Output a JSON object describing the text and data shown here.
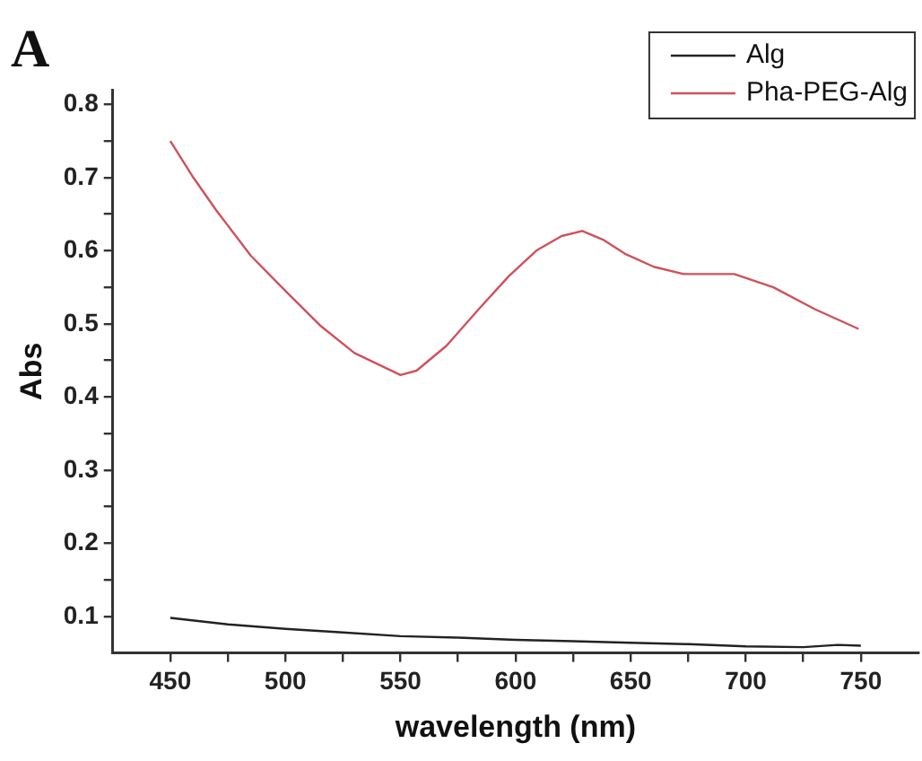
{
  "chart_data": {
    "type": "line",
    "title": "A",
    "xlabel": "wavelength (nm)",
    "ylabel": "Abs",
    "xlim": [
      425,
      775
    ],
    "ylim": [
      0.05,
      0.82
    ],
    "xticks": [
      450,
      {
        "value": 475,
        "label": null
      },
      500,
      {
        "value": 525,
        "label": null
      },
      550,
      {
        "value": 575,
        "label": null
      },
      600,
      {
        "value": 625,
        "label": null
      },
      650,
      {
        "value": 675,
        "label": null
      },
      700,
      {
        "value": 725,
        "label": null
      },
      750
    ],
    "yticks": [
      0.1,
      {
        "value": 0.15,
        "label": null
      },
      0.2,
      {
        "value": 0.25,
        "label": null
      },
      0.3,
      {
        "value": 0.35,
        "label": null
      },
      0.4,
      {
        "value": 0.45,
        "label": null
      },
      0.5,
      {
        "value": 0.55,
        "label": null
      },
      0.6,
      {
        "value": 0.65,
        "label": null
      },
      0.7,
      {
        "value": 0.75,
        "label": null
      },
      0.8
    ],
    "grid": false,
    "legend": "top right",
    "marker": "none",
    "line_style": "solid",
    "series": [
      {
        "name": "Alg",
        "color": "#222222",
        "x": [
          450,
          475,
          500,
          525,
          550,
          575,
          600,
          625,
          650,
          675,
          700,
          725,
          740,
          750
        ],
        "values": [
          0.098,
          0.089,
          0.083,
          0.078,
          0.073,
          0.071,
          0.068,
          0.066,
          0.064,
          0.062,
          0.059,
          0.058,
          0.061,
          0.06
        ]
      },
      {
        "name": "Pha-PEG-Alg",
        "color": "#d0505a",
        "x": [
          450,
          460,
          470,
          485,
          500,
          515,
          530,
          550,
          557,
          570,
          584,
          597,
          609,
          620,
          629,
          638,
          648,
          660,
          673,
          685,
          695,
          712,
          730,
          749
        ],
        "values": [
          0.75,
          0.7,
          0.655,
          0.593,
          0.545,
          0.498,
          0.46,
          0.43,
          0.436,
          0.47,
          0.52,
          0.565,
          0.6,
          0.62,
          0.627,
          0.615,
          0.595,
          0.578,
          0.568,
          0.568,
          0.568,
          0.55,
          0.52,
          0.493
        ]
      }
    ]
  }
}
